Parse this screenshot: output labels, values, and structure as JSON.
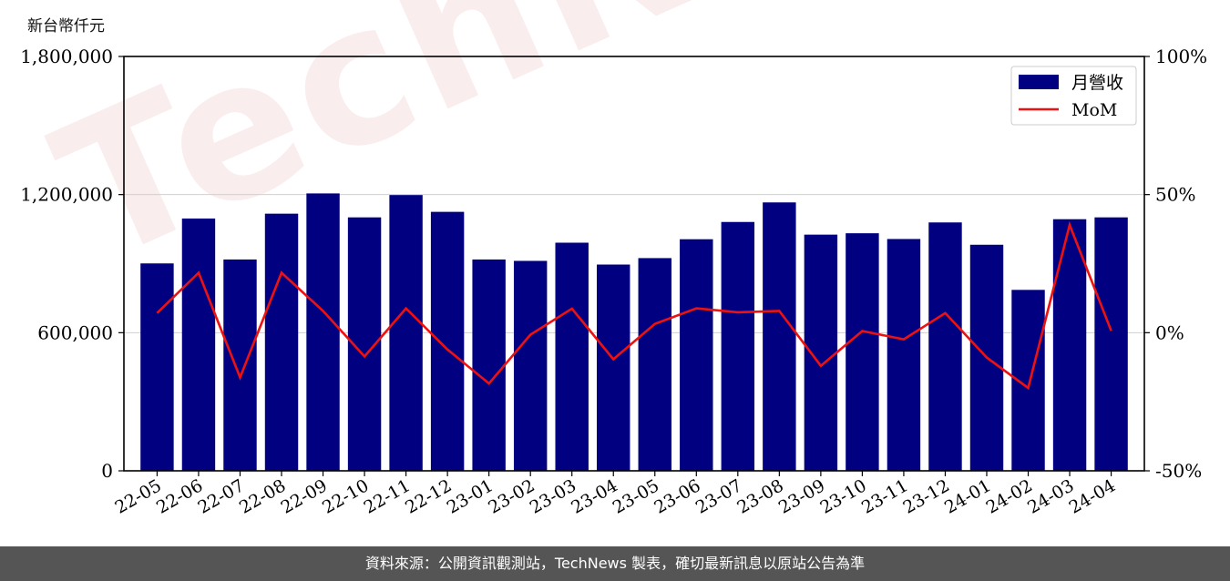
{
  "watermark": "TechNews",
  "unit_label": "新台幣仟元",
  "footer": "資料來源：公開資訊觀測站，TechNews 製表，確切最新訊息以原站公告為準",
  "colors": {
    "bar": "#000080",
    "line": "#ee1111",
    "grid": "#d0d0d0",
    "footer_bg": "#555555"
  },
  "chart_data": {
    "type": "bar",
    "categories": [
      "22-05",
      "22-06",
      "22-07",
      "22-08",
      "22-09",
      "22-10",
      "22-11",
      "22-12",
      "23-01",
      "23-02",
      "23-03",
      "23-04",
      "23-05",
      "23-06",
      "23-07",
      "23-08",
      "23-09",
      "23-10",
      "23-11",
      "23-12",
      "24-01",
      "24-02",
      "24-03",
      "24-04"
    ],
    "series": [
      {
        "name": "月營收",
        "axis": "left",
        "type": "bar",
        "values": [
          901000,
          1096000,
          918000,
          1117000,
          1205000,
          1101000,
          1198000,
          1125000,
          918000,
          912000,
          991000,
          896000,
          924000,
          1006000,
          1081000,
          1166000,
          1026000,
          1032000,
          1007000,
          1079000,
          982000,
          786000,
          1093000,
          1101000
        ]
      },
      {
        "name": "MoM",
        "axis": "right",
        "type": "line",
        "values": [
          7.1,
          21.7,
          -16.2,
          21.7,
          7.9,
          -8.6,
          8.8,
          -6.1,
          -18.4,
          -0.7,
          8.7,
          -9.6,
          3.2,
          8.8,
          7.4,
          7.9,
          -12.0,
          0.6,
          -2.4,
          7.1,
          -9.0,
          -20.0,
          39.0,
          0.7
        ]
      }
    ],
    "y_left": {
      "min": 0,
      "max": 1800000,
      "ticks": [
        0,
        600000,
        1200000,
        1800000
      ],
      "tick_labels": [
        "0",
        "600,000",
        "1,200,000",
        "1,800,000"
      ]
    },
    "y_right": {
      "min": -50,
      "max": 100,
      "ticks": [
        -50,
        0,
        50,
        100
      ],
      "tick_labels": [
        "-50%",
        "0%",
        "50%",
        "100%"
      ]
    },
    "legend_position": "top-right",
    "grid": "horizontal"
  }
}
